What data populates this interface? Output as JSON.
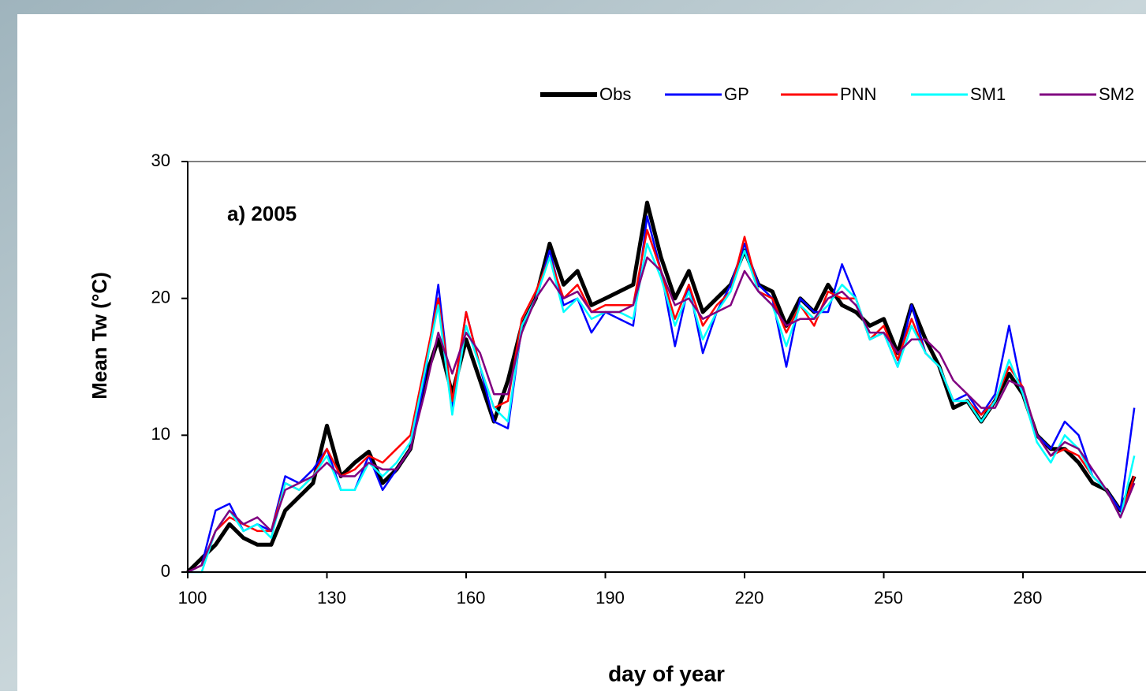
{
  "chart_data": {
    "type": "line",
    "annotation": "a) 2005",
    "x_label": "day of year",
    "y_label": "Mean Tw (°C)",
    "x": [
      100,
      103,
      106,
      109,
      112,
      115,
      118,
      121,
      124,
      127,
      130,
      133,
      136,
      139,
      142,
      145,
      148,
      151,
      154,
      157,
      160,
      163,
      166,
      169,
      172,
      175,
      178,
      181,
      184,
      187,
      190,
      193,
      196,
      199,
      202,
      205,
      208,
      211,
      214,
      217,
      220,
      223,
      226,
      229,
      232,
      235,
      238,
      241,
      244,
      247,
      250,
      253,
      256,
      259,
      262,
      265,
      268,
      271,
      274,
      277,
      280,
      283,
      286,
      289,
      292,
      295,
      298,
      301,
      304
    ],
    "series": [
      {
        "name": "Obs",
        "color": "#000000",
        "values": [
          0,
          1,
          2,
          3.5,
          2.5,
          2,
          2,
          4.5,
          5.5,
          6.5,
          10.7,
          7,
          8,
          8.8,
          6.5,
          7.5,
          9,
          14,
          17,
          13,
          17,
          14,
          11,
          14,
          18,
          20,
          24,
          21,
          22,
          19.5,
          20,
          20.5,
          21,
          27,
          23,
          20,
          22,
          19,
          20,
          21,
          23.5,
          21,
          20.5,
          18,
          20,
          19,
          21,
          19.5,
          19,
          18,
          18.5,
          16,
          19.5,
          17,
          15,
          12,
          12.5,
          11,
          12.5,
          14.5,
          13,
          10,
          9,
          9,
          8,
          6.5,
          6,
          4.5,
          7
        ]
      },
      {
        "name": "GP",
        "color": "#0000ff",
        "values": [
          0,
          0.5,
          4.5,
          5,
          3,
          3.5,
          3,
          7,
          6.5,
          7.5,
          9,
          6,
          6,
          8.5,
          6,
          7.5,
          9,
          14,
          21,
          12,
          19,
          15,
          11,
          10.5,
          18,
          20,
          23.5,
          19.5,
          20,
          17.5,
          19,
          18.5,
          18,
          26,
          22,
          16.5,
          21,
          16,
          19,
          21,
          24,
          21,
          20,
          15,
          20,
          19,
          19,
          22.5,
          20,
          17,
          17.5,
          15,
          19.5,
          16,
          15,
          12.5,
          13,
          11.5,
          13,
          18,
          13,
          10,
          9,
          11,
          10,
          7,
          6,
          4.5,
          12
        ]
      },
      {
        "name": "PNN",
        "color": "#ff0000",
        "values": [
          0,
          0.5,
          3,
          4,
          3.5,
          3,
          3,
          6.5,
          6,
          7,
          9,
          7,
          7.5,
          8.5,
          8,
          9,
          10,
          15,
          20,
          12.5,
          19,
          15,
          12,
          12.5,
          18.5,
          20.5,
          23,
          20,
          21,
          19,
          19.5,
          19.5,
          19.5,
          25,
          22,
          18.5,
          21,
          18,
          19.5,
          20.5,
          24.5,
          20.5,
          20,
          17.5,
          19.5,
          18,
          20.5,
          20,
          20,
          17,
          18,
          15.5,
          18.5,
          16,
          15,
          12.5,
          12.5,
          11.5,
          12.5,
          15,
          13.5,
          10,
          8.5,
          9,
          8.5,
          7,
          6,
          4,
          7
        ]
      },
      {
        "name": "SM1",
        "color": "#00ffff",
        "values": [
          0,
          0,
          3,
          4.5,
          3,
          3.5,
          2.5,
          6.5,
          6,
          7,
          8.5,
          6,
          6,
          8,
          7,
          8,
          9.5,
          14.5,
          19.5,
          11.5,
          18,
          15,
          12,
          11,
          18,
          20,
          23,
          19,
          20,
          18.5,
          19,
          19,
          18.5,
          24,
          21.5,
          18,
          20.5,
          17,
          19,
          20.5,
          23.5,
          20.5,
          19.5,
          16.5,
          19.5,
          18.5,
          19.5,
          21,
          20,
          17,
          17.5,
          15,
          18,
          16,
          15,
          12.5,
          12.5,
          11,
          12.5,
          15.5,
          13,
          9.5,
          8,
          10,
          9,
          7,
          6,
          4,
          8.5
        ]
      },
      {
        "name": "SM2",
        "color": "#800080",
        "values": [
          0,
          0.5,
          3,
          4.5,
          3.5,
          4,
          3,
          6,
          6.5,
          7,
          8,
          7,
          7,
          8,
          7.5,
          7.5,
          9,
          13,
          17.5,
          14.5,
          17.5,
          16,
          13,
          13,
          17.5,
          20,
          21.5,
          20,
          20.5,
          19,
          19,
          19,
          19.5,
          23,
          22,
          19.5,
          20,
          18.5,
          19,
          19.5,
          22,
          20.5,
          19.5,
          18,
          18.5,
          18.5,
          20,
          20.5,
          19.5,
          17.5,
          17.5,
          16,
          17,
          17,
          16,
          14,
          13,
          12,
          12,
          14,
          13.5,
          10,
          8.5,
          9.5,
          9,
          7.5,
          6,
          4,
          6.5
        ]
      }
    ],
    "xlim": [
      100,
      306
    ],
    "xticks": [
      100,
      130,
      160,
      190,
      220,
      250,
      280
    ],
    "ylim": [
      0,
      30
    ],
    "yticks": [
      0,
      10,
      20,
      30
    ],
    "grid": false,
    "legend": "top"
  }
}
